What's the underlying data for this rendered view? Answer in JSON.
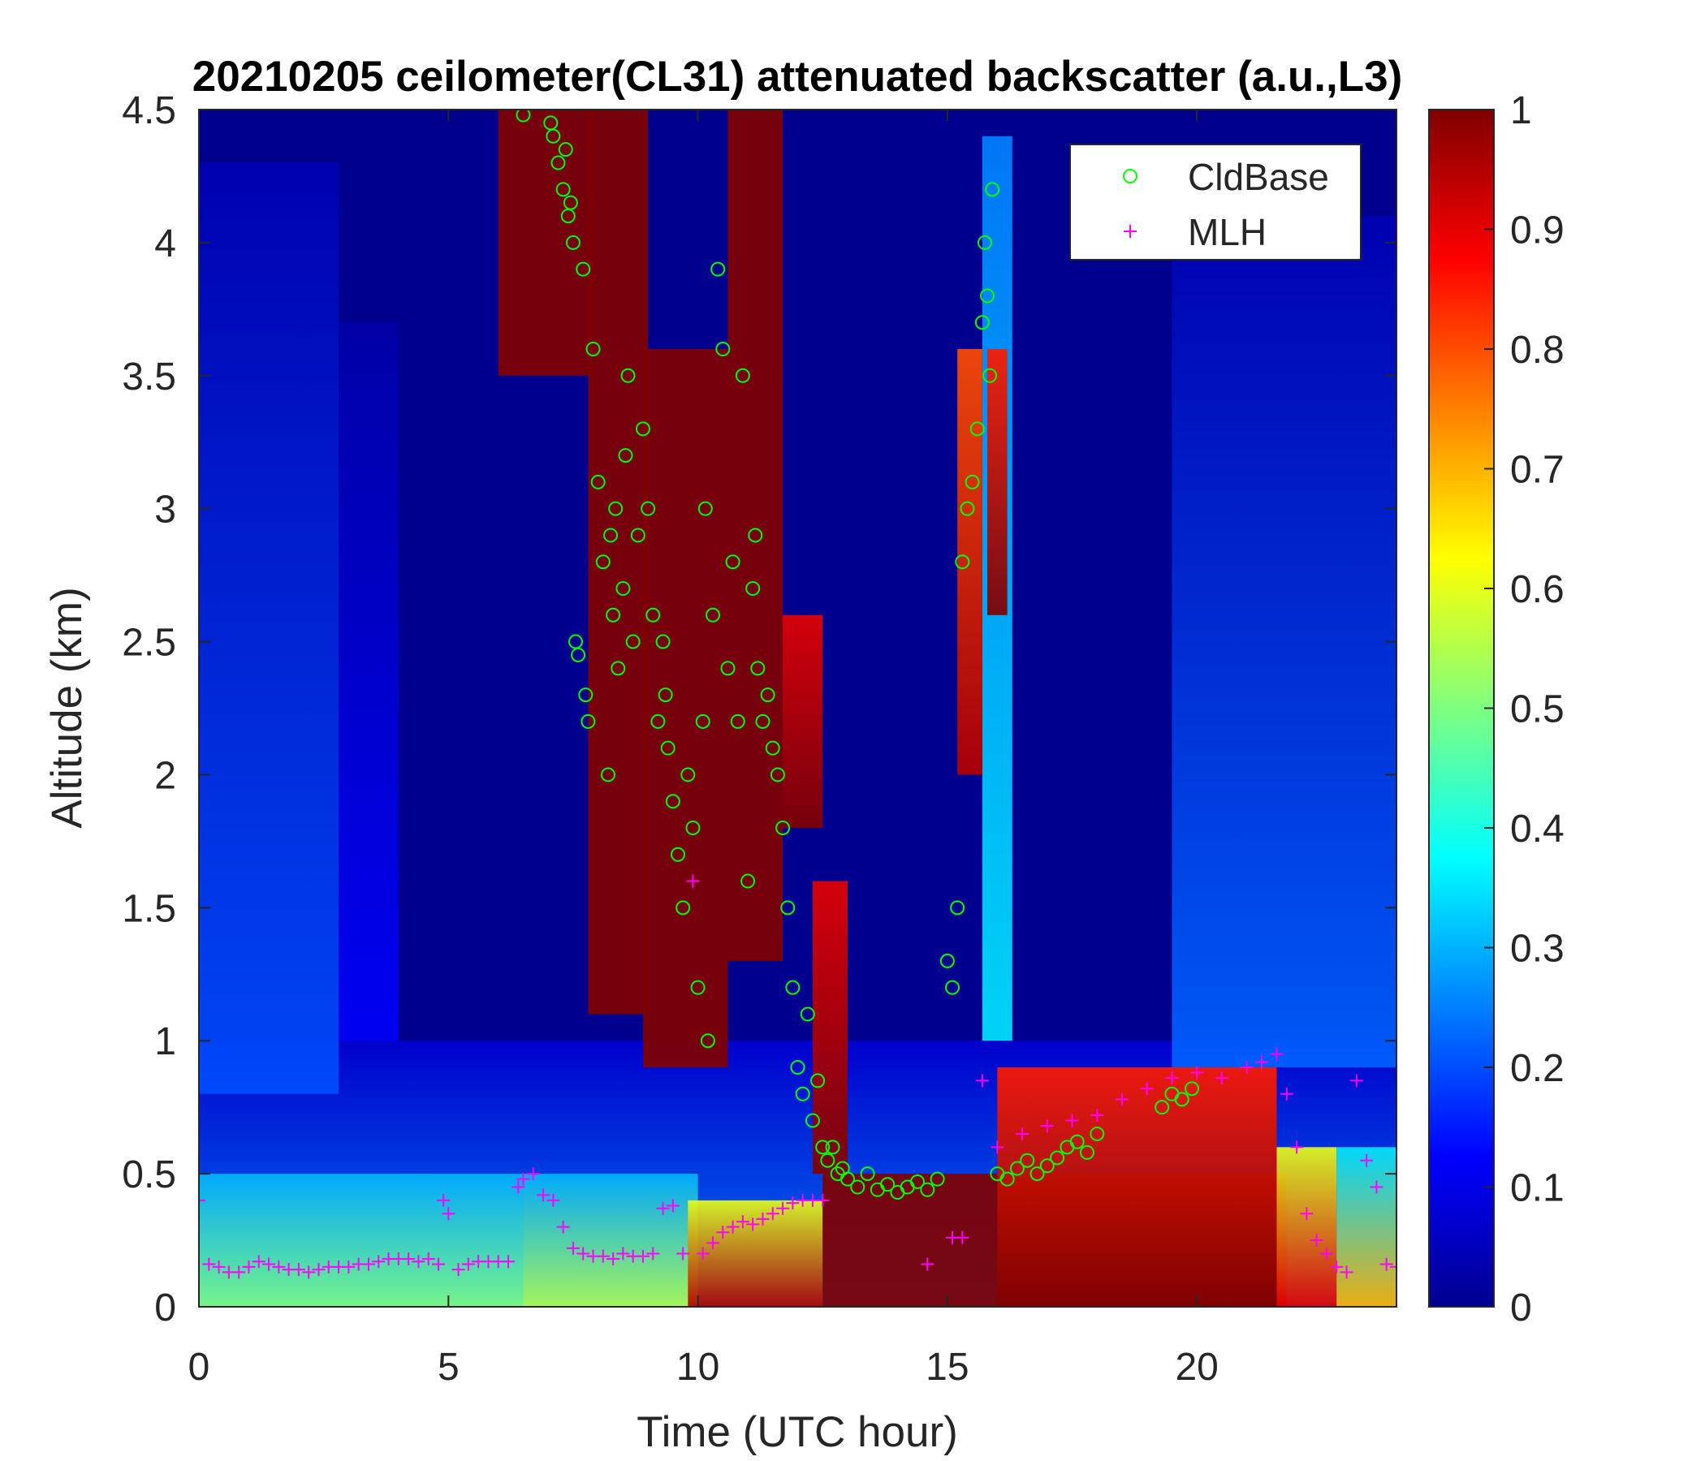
{
  "chart_data": {
    "type": "heatmap",
    "title": "20210205 ceilometer(CL31) attenuated backscatter (a.u.,L3)",
    "xlabel": "Time (UTC hour)",
    "ylabel": "Altitude (km)",
    "xlim": [
      0,
      24
    ],
    "ylim": [
      0,
      4.5
    ],
    "xticks": [
      0,
      5,
      10,
      15,
      20
    ],
    "xtick_labels": [
      "0",
      "5",
      "10",
      "15",
      "20"
    ],
    "yticks": [
      0,
      0.5,
      1,
      1.5,
      2,
      2.5,
      3,
      3.5,
      4,
      4.5
    ],
    "ytick_labels": [
      "0",
      "0.5",
      "1",
      "1.5",
      "2",
      "2.5",
      "3",
      "3.5",
      "4",
      "4.5"
    ],
    "colorbar": {
      "colormap": "jet",
      "range": [
        0,
        1
      ],
      "ticks": [
        0,
        0.1,
        0.2,
        0.3,
        0.4,
        0.5,
        0.6,
        0.7,
        0.8,
        0.9,
        1
      ],
      "tick_labels": [
        "0",
        "0.1",
        "0.2",
        "0.3",
        "0.4",
        "0.5",
        "0.6",
        "0.7",
        "0.8",
        "0.9",
        "1"
      ]
    },
    "legend": {
      "location": "top-right",
      "entries": [
        {
          "label": "CldBase",
          "marker": "circle",
          "color": "#00ff00"
        },
        {
          "label": "MLH",
          "marker": "plus",
          "color": "#ff00ff"
        }
      ]
    },
    "background_value": 0.0,
    "heat_regions": [
      {
        "t0": 0,
        "t1": 24,
        "h0": 0,
        "h1": 1.0,
        "v0": 0.25,
        "v1": 0.08
      },
      {
        "t0": 0,
        "t1": 6.5,
        "h0": 0,
        "h1": 0.5,
        "v0": 0.5,
        "v1": 0.3
      },
      {
        "t0": 0,
        "t1": 2.8,
        "h0": 0.8,
        "h1": 4.3,
        "v0": 0.2,
        "v1": 0.05
      },
      {
        "t0": 2.8,
        "t1": 4,
        "h0": 1.0,
        "h1": 3.7,
        "v0": 0.12,
        "v1": 0.04
      },
      {
        "t0": 6.5,
        "t1": 10,
        "h0": 0,
        "h1": 0.5,
        "v0": 0.55,
        "v1": 0.3
      },
      {
        "t0": 9.8,
        "t1": 12.5,
        "h0": 0,
        "h1": 0.4,
        "v0": 0.95,
        "v1": 0.6
      },
      {
        "t0": 12.5,
        "t1": 21.8,
        "h0": 0,
        "h1": 0.5,
        "v0": 1.0,
        "v1": 1.0
      },
      {
        "t0": 16,
        "t1": 21.6,
        "h0": 0,
        "h1": 0.9,
        "v0": 1.0,
        "v1": 0.85
      },
      {
        "t0": 21.6,
        "t1": 22.8,
        "h0": 0,
        "h1": 0.6,
        "v0": 0.9,
        "v1": 0.6
      },
      {
        "t0": 22.8,
        "t1": 24,
        "h0": 0,
        "h1": 0.6,
        "v0": 0.7,
        "v1": 0.35
      },
      {
        "t0": 19.5,
        "t1": 24,
        "h0": 0.9,
        "h1": 4.1,
        "v0": 0.22,
        "v1": 0.05
      },
      {
        "t0": 15.7,
        "t1": 16.3,
        "h0": 1.0,
        "h1": 4.4,
        "v0": 0.35,
        "v1": 0.25
      },
      {
        "t0": 15.8,
        "t1": 16.2,
        "h0": 2.6,
        "h1": 3.6,
        "v0": 1.0,
        "v1": 0.85
      },
      {
        "t0": 6.0,
        "t1": 7.9,
        "h0": 3.5,
        "h1": 4.5,
        "v0": 1.0,
        "v1": 1.0
      },
      {
        "t0": 7.8,
        "t1": 9.0,
        "h0": 1.1,
        "h1": 4.5,
        "v0": 1.0,
        "v1": 1.0
      },
      {
        "t0": 8.9,
        "t1": 10.6,
        "h0": 0.9,
        "h1": 3.6,
        "v0": 1.0,
        "v1": 1.0
      },
      {
        "t0": 10.6,
        "t1": 11.7,
        "h0": 1.3,
        "h1": 4.5,
        "v0": 1.0,
        "v1": 1.0
      },
      {
        "t0": 11.7,
        "t1": 12.5,
        "h0": 1.8,
        "h1": 2.6,
        "v0": 1.0,
        "v1": 0.9
      },
      {
        "t0": 12.3,
        "t1": 13.0,
        "h0": 0.5,
        "h1": 1.6,
        "v0": 1.0,
        "v1": 0.9
      },
      {
        "t0": 15.2,
        "t1": 15.7,
        "h0": 2.0,
        "h1": 3.6,
        "v0": 0.95,
        "v1": 0.8
      }
    ],
    "series": [
      {
        "name": "CldBase",
        "marker": "circle",
        "x": [
          6.5,
          7.05,
          7.1,
          7.2,
          7.3,
          7.35,
          7.4,
          7.45,
          7.5,
          7.55,
          7.6,
          7.7,
          7.75,
          7.8,
          7.9,
          8.0,
          8.1,
          8.2,
          8.25,
          8.3,
          8.35,
          8.4,
          8.5,
          8.55,
          8.6,
          8.7,
          8.8,
          8.9,
          9.0,
          9.1,
          9.2,
          9.3,
          9.35,
          9.4,
          9.5,
          9.6,
          9.7,
          9.8,
          9.9,
          10.0,
          10.1,
          10.15,
          10.2,
          10.3,
          10.4,
          10.5,
          10.6,
          10.7,
          10.8,
          10.9,
          11.0,
          11.1,
          11.15,
          11.2,
          11.3,
          11.4,
          11.5,
          11.6,
          11.7,
          11.8,
          11.9,
          12.0,
          12.1,
          12.2,
          12.3,
          12.4,
          12.5,
          12.6,
          12.7,
          12.8,
          12.9,
          13.0,
          13.2,
          13.4,
          13.6,
          13.8,
          14.0,
          14.2,
          14.4,
          14.6,
          14.8,
          15.0,
          15.1,
          15.2,
          15.3,
          15.4,
          15.5,
          15.6,
          15.7,
          15.75,
          15.8,
          15.85,
          15.9,
          16.0,
          16.2,
          16.4,
          16.6,
          16.8,
          17.0,
          17.2,
          17.4,
          17.6,
          17.8,
          18.0,
          19.3,
          19.5,
          19.7,
          19.9
        ],
        "y": [
          4.48,
          4.45,
          4.4,
          4.3,
          4.2,
          4.35,
          4.1,
          4.15,
          4.0,
          2.5,
          2.45,
          3.9,
          2.3,
          2.2,
          3.6,
          3.1,
          2.8,
          2.0,
          2.9,
          2.6,
          3.0,
          2.4,
          2.7,
          3.2,
          3.5,
          2.5,
          2.9,
          3.3,
          3.0,
          2.6,
          2.2,
          2.5,
          2.3,
          2.1,
          1.9,
          1.7,
          1.5,
          2.0,
          1.8,
          1.2,
          2.2,
          3.0,
          1.0,
          2.6,
          3.9,
          3.6,
          2.4,
          2.8,
          2.2,
          3.5,
          1.6,
          2.7,
          2.9,
          2.4,
          2.2,
          2.3,
          2.1,
          2.0,
          1.8,
          1.5,
          1.2,
          0.9,
          0.8,
          1.1,
          0.7,
          0.85,
          0.6,
          0.55,
          0.6,
          0.5,
          0.52,
          0.48,
          0.45,
          0.5,
          0.44,
          0.46,
          0.43,
          0.45,
          0.47,
          0.44,
          0.48,
          1.3,
          1.2,
          1.5,
          2.8,
          3.0,
          3.1,
          3.3,
          3.7,
          4.0,
          3.8,
          3.5,
          4.2,
          0.5,
          0.48,
          0.52,
          0.55,
          0.5,
          0.53,
          0.56,
          0.6,
          0.62,
          0.58,
          0.65,
          0.75,
          0.8,
          0.78,
          0.82
        ]
      },
      {
        "name": "MLH",
        "marker": "plus",
        "x": [
          0,
          0.2,
          0.4,
          0.6,
          0.8,
          1.0,
          1.2,
          1.4,
          1.6,
          1.8,
          2.0,
          2.2,
          2.4,
          2.6,
          2.8,
          3.0,
          3.2,
          3.4,
          3.6,
          3.8,
          4.0,
          4.2,
          4.4,
          4.6,
          4.8,
          4.9,
          5.0,
          5.2,
          5.4,
          5.6,
          5.8,
          6.0,
          6.2,
          6.4,
          6.5,
          6.7,
          6.9,
          7.1,
          7.3,
          7.5,
          7.7,
          7.9,
          8.1,
          8.3,
          8.5,
          8.7,
          8.9,
          9.1,
          9.3,
          9.5,
          9.7,
          9.9,
          10.1,
          10.3,
          10.5,
          10.7,
          10.9,
          11.1,
          11.3,
          11.5,
          11.7,
          11.9,
          12.1,
          12.3,
          12.5,
          14.6,
          15.1,
          15.3,
          15.7,
          16.0,
          16.5,
          17.0,
          17.5,
          18.0,
          18.5,
          19.0,
          19.5,
          20.0,
          20.5,
          21.0,
          21.3,
          21.6,
          21.8,
          22.0,
          22.2,
          22.4,
          22.6,
          22.8,
          23.0,
          23.2,
          23.4,
          23.6,
          23.8,
          24.0
        ],
        "y": [
          0.4,
          0.16,
          0.15,
          0.13,
          0.13,
          0.15,
          0.17,
          0.16,
          0.15,
          0.14,
          0.14,
          0.13,
          0.14,
          0.15,
          0.15,
          0.15,
          0.16,
          0.16,
          0.17,
          0.18,
          0.18,
          0.18,
          0.17,
          0.18,
          0.16,
          0.4,
          0.35,
          0.14,
          0.16,
          0.17,
          0.17,
          0.17,
          0.17,
          0.45,
          0.48,
          0.5,
          0.42,
          0.4,
          0.3,
          0.22,
          0.2,
          0.19,
          0.19,
          0.18,
          0.2,
          0.19,
          0.19,
          0.2,
          0.37,
          0.38,
          0.2,
          1.6,
          0.2,
          0.24,
          0.28,
          0.3,
          0.32,
          0.31,
          0.33,
          0.35,
          0.37,
          0.39,
          0.4,
          0.4,
          0.4,
          0.16,
          0.26,
          0.26,
          0.85,
          0.6,
          0.65,
          0.68,
          0.7,
          0.72,
          0.78,
          0.82,
          0.86,
          0.88,
          0.86,
          0.9,
          0.92,
          0.95,
          0.8,
          0.6,
          0.35,
          0.25,
          0.2,
          0.15,
          0.13,
          0.85,
          0.55,
          0.45,
          0.16,
          0.15
        ]
      }
    ]
  }
}
